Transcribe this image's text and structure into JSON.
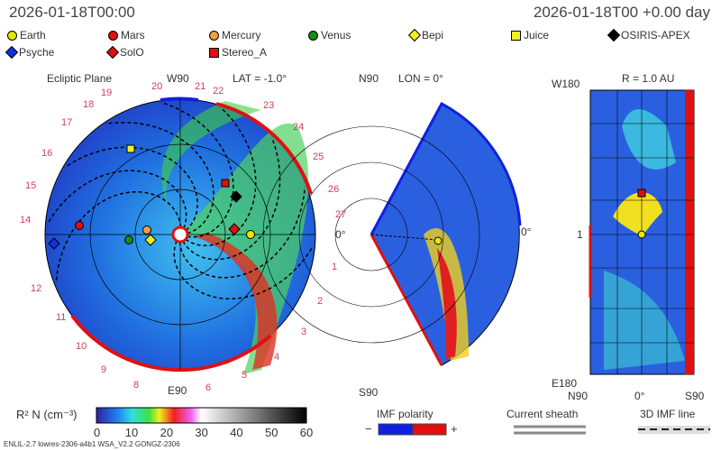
{
  "header": {
    "left_time": "2026-01-18T00:00",
    "right_time": "2026-01-18T00 +0.00 day"
  },
  "legend": [
    {
      "name": "Earth",
      "color": "#e6e600",
      "shape": "circle"
    },
    {
      "name": "Mars",
      "color": "#e01010",
      "shape": "circle"
    },
    {
      "name": "Mercury",
      "color": "#f0a040",
      "shape": "circle"
    },
    {
      "name": "Venus",
      "color": "#1a8a1a",
      "shape": "circle"
    },
    {
      "name": "Bepi",
      "color": "#f0f020",
      "shape": "diamond"
    },
    {
      "name": "Juice",
      "color": "#f0f020",
      "shape": "square"
    },
    {
      "name": "OSIRIS-APEX",
      "color": "#000000",
      "shape": "diamond"
    },
    {
      "name": "Psyche",
      "color": "#1030e0",
      "shape": "diamond"
    },
    {
      "name": "SolO",
      "color": "#e01010",
      "shape": "diamond"
    },
    {
      "name": "Stereo_A",
      "color": "#e01010",
      "shape": "square"
    }
  ],
  "panels": {
    "ecliptic": {
      "title": "Ecliptic Plane",
      "lat": "LAT = -1.0°",
      "top": "W90",
      "bottom": "E90",
      "right": "0°",
      "sectors": [
        "19",
        "20",
        "21",
        "22",
        "23",
        "24",
        "25",
        "26",
        "27",
        "1",
        "2",
        "3",
        "4",
        "5",
        "6",
        "8",
        "9",
        "10",
        "11",
        "12",
        "14",
        "15",
        "16",
        "17",
        "18"
      ]
    },
    "meridional": {
      "top": "N90",
      "bottom": "S90",
      "lon": "LON = 0°",
      "right": "0°"
    },
    "radial": {
      "title": "R = 1.0 AU",
      "top": "W180",
      "bottom": "E180",
      "mid": "1",
      "xl": "N90",
      "xm": "0°",
      "xr": "S90"
    }
  },
  "colorbar": {
    "label": "R² N (cm⁻³)",
    "ticks": [
      "0",
      "10",
      "20",
      "30",
      "40",
      "50",
      "60"
    ]
  },
  "keys": {
    "imf": "IMF polarity",
    "minus": "−",
    "plus": "+",
    "sheath": "Current sheath",
    "imfline": "3D IMF line",
    "imf_neg": "#1020e0",
    "imf_pos": "#e01010"
  },
  "footer": "ENLIL-2.7 lowres-2306-a4b1 WSA_V2.2 GONGZ-2306"
}
